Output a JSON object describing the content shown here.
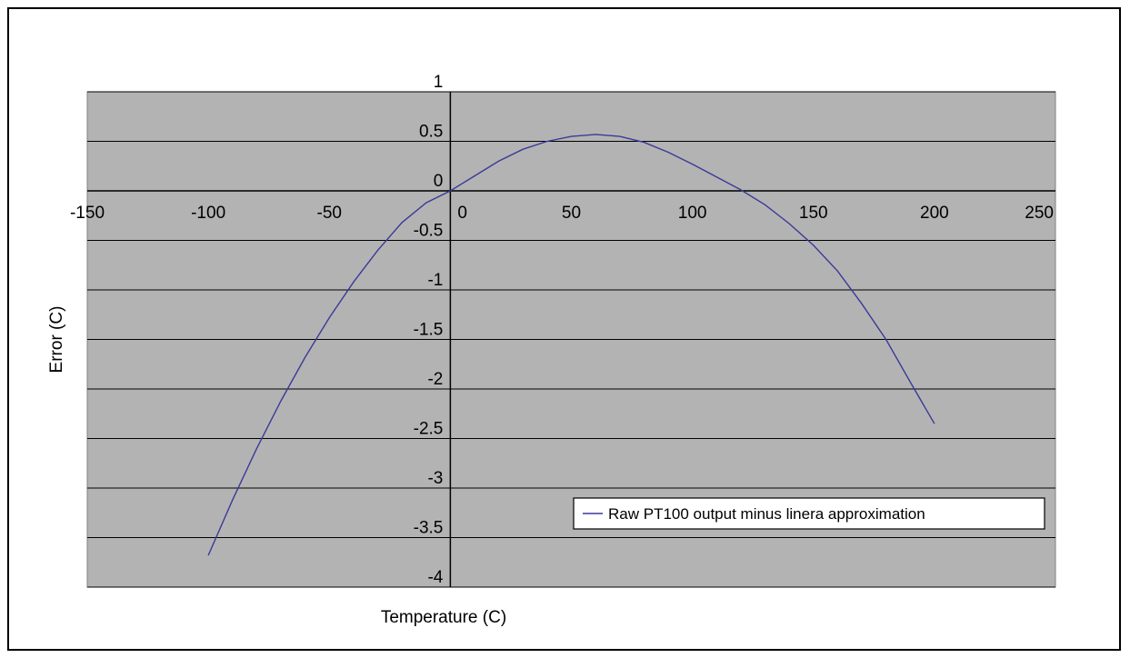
{
  "chart_data": {
    "type": "line",
    "title": "",
    "xlabel": "Temperature (C)",
    "ylabel": "Error (C)",
    "xlim": [
      -150,
      250
    ],
    "ylim": [
      -4,
      1
    ],
    "x_ticks": [
      -150,
      -100,
      -50,
      0,
      50,
      100,
      150,
      200,
      250
    ],
    "y_ticks": [
      1,
      0.5,
      0,
      -0.5,
      -1,
      -1.5,
      -2,
      -2.5,
      -3,
      -3.5,
      -4
    ],
    "grid": "horizontal",
    "plot_background": "#b3b3b3",
    "series": [
      {
        "name": "Raw PT100 output minus linera approximation",
        "color": "#3a3a9a",
        "x": [
          -100,
          -90,
          -80,
          -70,
          -60,
          -50,
          -40,
          -30,
          -20,
          -10,
          0,
          10,
          20,
          30,
          40,
          50,
          60,
          70,
          80,
          90,
          100,
          110,
          120,
          130,
          140,
          150,
          160,
          170,
          180,
          190,
          200
        ],
        "y": [
          -3.68,
          -3.12,
          -2.6,
          -2.12,
          -1.68,
          -1.28,
          -0.92,
          -0.6,
          -0.32,
          -0.12,
          0.0,
          0.15,
          0.3,
          0.42,
          0.5,
          0.55,
          0.57,
          0.55,
          0.49,
          0.39,
          0.27,
          0.14,
          0.01,
          -0.14,
          -0.33,
          -0.55,
          -0.81,
          -1.14,
          -1.5,
          -1.93,
          -2.35
        ]
      }
    ],
    "legend": {
      "position": "bottom-right",
      "entries": [
        "Raw PT100 output minus linera approximation"
      ]
    }
  }
}
